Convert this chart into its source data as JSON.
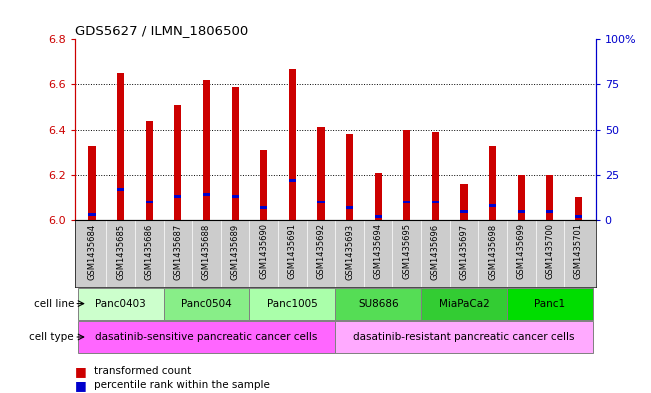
{
  "title": "GDS5627 / ILMN_1806500",
  "samples": [
    "GSM1435684",
    "GSM1435685",
    "GSM1435686",
    "GSM1435687",
    "GSM1435688",
    "GSM1435689",
    "GSM1435690",
    "GSM1435691",
    "GSM1435692",
    "GSM1435693",
    "GSM1435694",
    "GSM1435695",
    "GSM1435696",
    "GSM1435697",
    "GSM1435698",
    "GSM1435699",
    "GSM1435700",
    "GSM1435701"
  ],
  "transformed_count": [
    6.33,
    6.65,
    6.44,
    6.51,
    6.62,
    6.59,
    6.31,
    6.67,
    6.41,
    6.38,
    6.21,
    6.4,
    6.39,
    6.16,
    6.33,
    6.2,
    6.2,
    6.1
  ],
  "percentile_rank": [
    3,
    17,
    10,
    13,
    14,
    13,
    7,
    22,
    10,
    7,
    2,
    10,
    10,
    5,
    8,
    5,
    5,
    2
  ],
  "ylim_left": [
    6.0,
    6.8
  ],
  "ylim_right": [
    0,
    100
  ],
  "yticks_left": [
    6.0,
    6.2,
    6.4,
    6.6,
    6.8
  ],
  "yticks_right": [
    0,
    25,
    50,
    75,
    100
  ],
  "cell_lines_def": [
    {
      "label": "Panc0403",
      "start": 0,
      "end": 2,
      "color": "#ccffcc"
    },
    {
      "label": "Panc0504",
      "start": 3,
      "end": 5,
      "color": "#88ee88"
    },
    {
      "label": "Panc1005",
      "start": 6,
      "end": 8,
      "color": "#aaffaa"
    },
    {
      "label": "SU8686",
      "start": 9,
      "end": 11,
      "color": "#55dd55"
    },
    {
      "label": "MiaPaCa2",
      "start": 12,
      "end": 14,
      "color": "#33cc33"
    },
    {
      "label": "Panc1",
      "start": 15,
      "end": 17,
      "color": "#00dd00"
    }
  ],
  "cell_type_def": [
    {
      "label": "dasatinib-sensitive pancreatic cancer cells",
      "start": 0,
      "end": 8,
      "color": "#ff66ff"
    },
    {
      "label": "dasatinib-resistant pancreatic cancer cells",
      "start": 9,
      "end": 17,
      "color": "#ffaaff"
    }
  ],
  "bar_color_red": "#cc0000",
  "bar_color_blue": "#0000cc",
  "bar_width": 0.25,
  "bg_color": "#ffffff",
  "sample_label_bg": "#cccccc",
  "left_axis_color": "#cc0000",
  "right_axis_color": "#0000cc",
  "base_value": 6.0,
  "grid_yticks": [
    6.2,
    6.4,
    6.6
  ]
}
